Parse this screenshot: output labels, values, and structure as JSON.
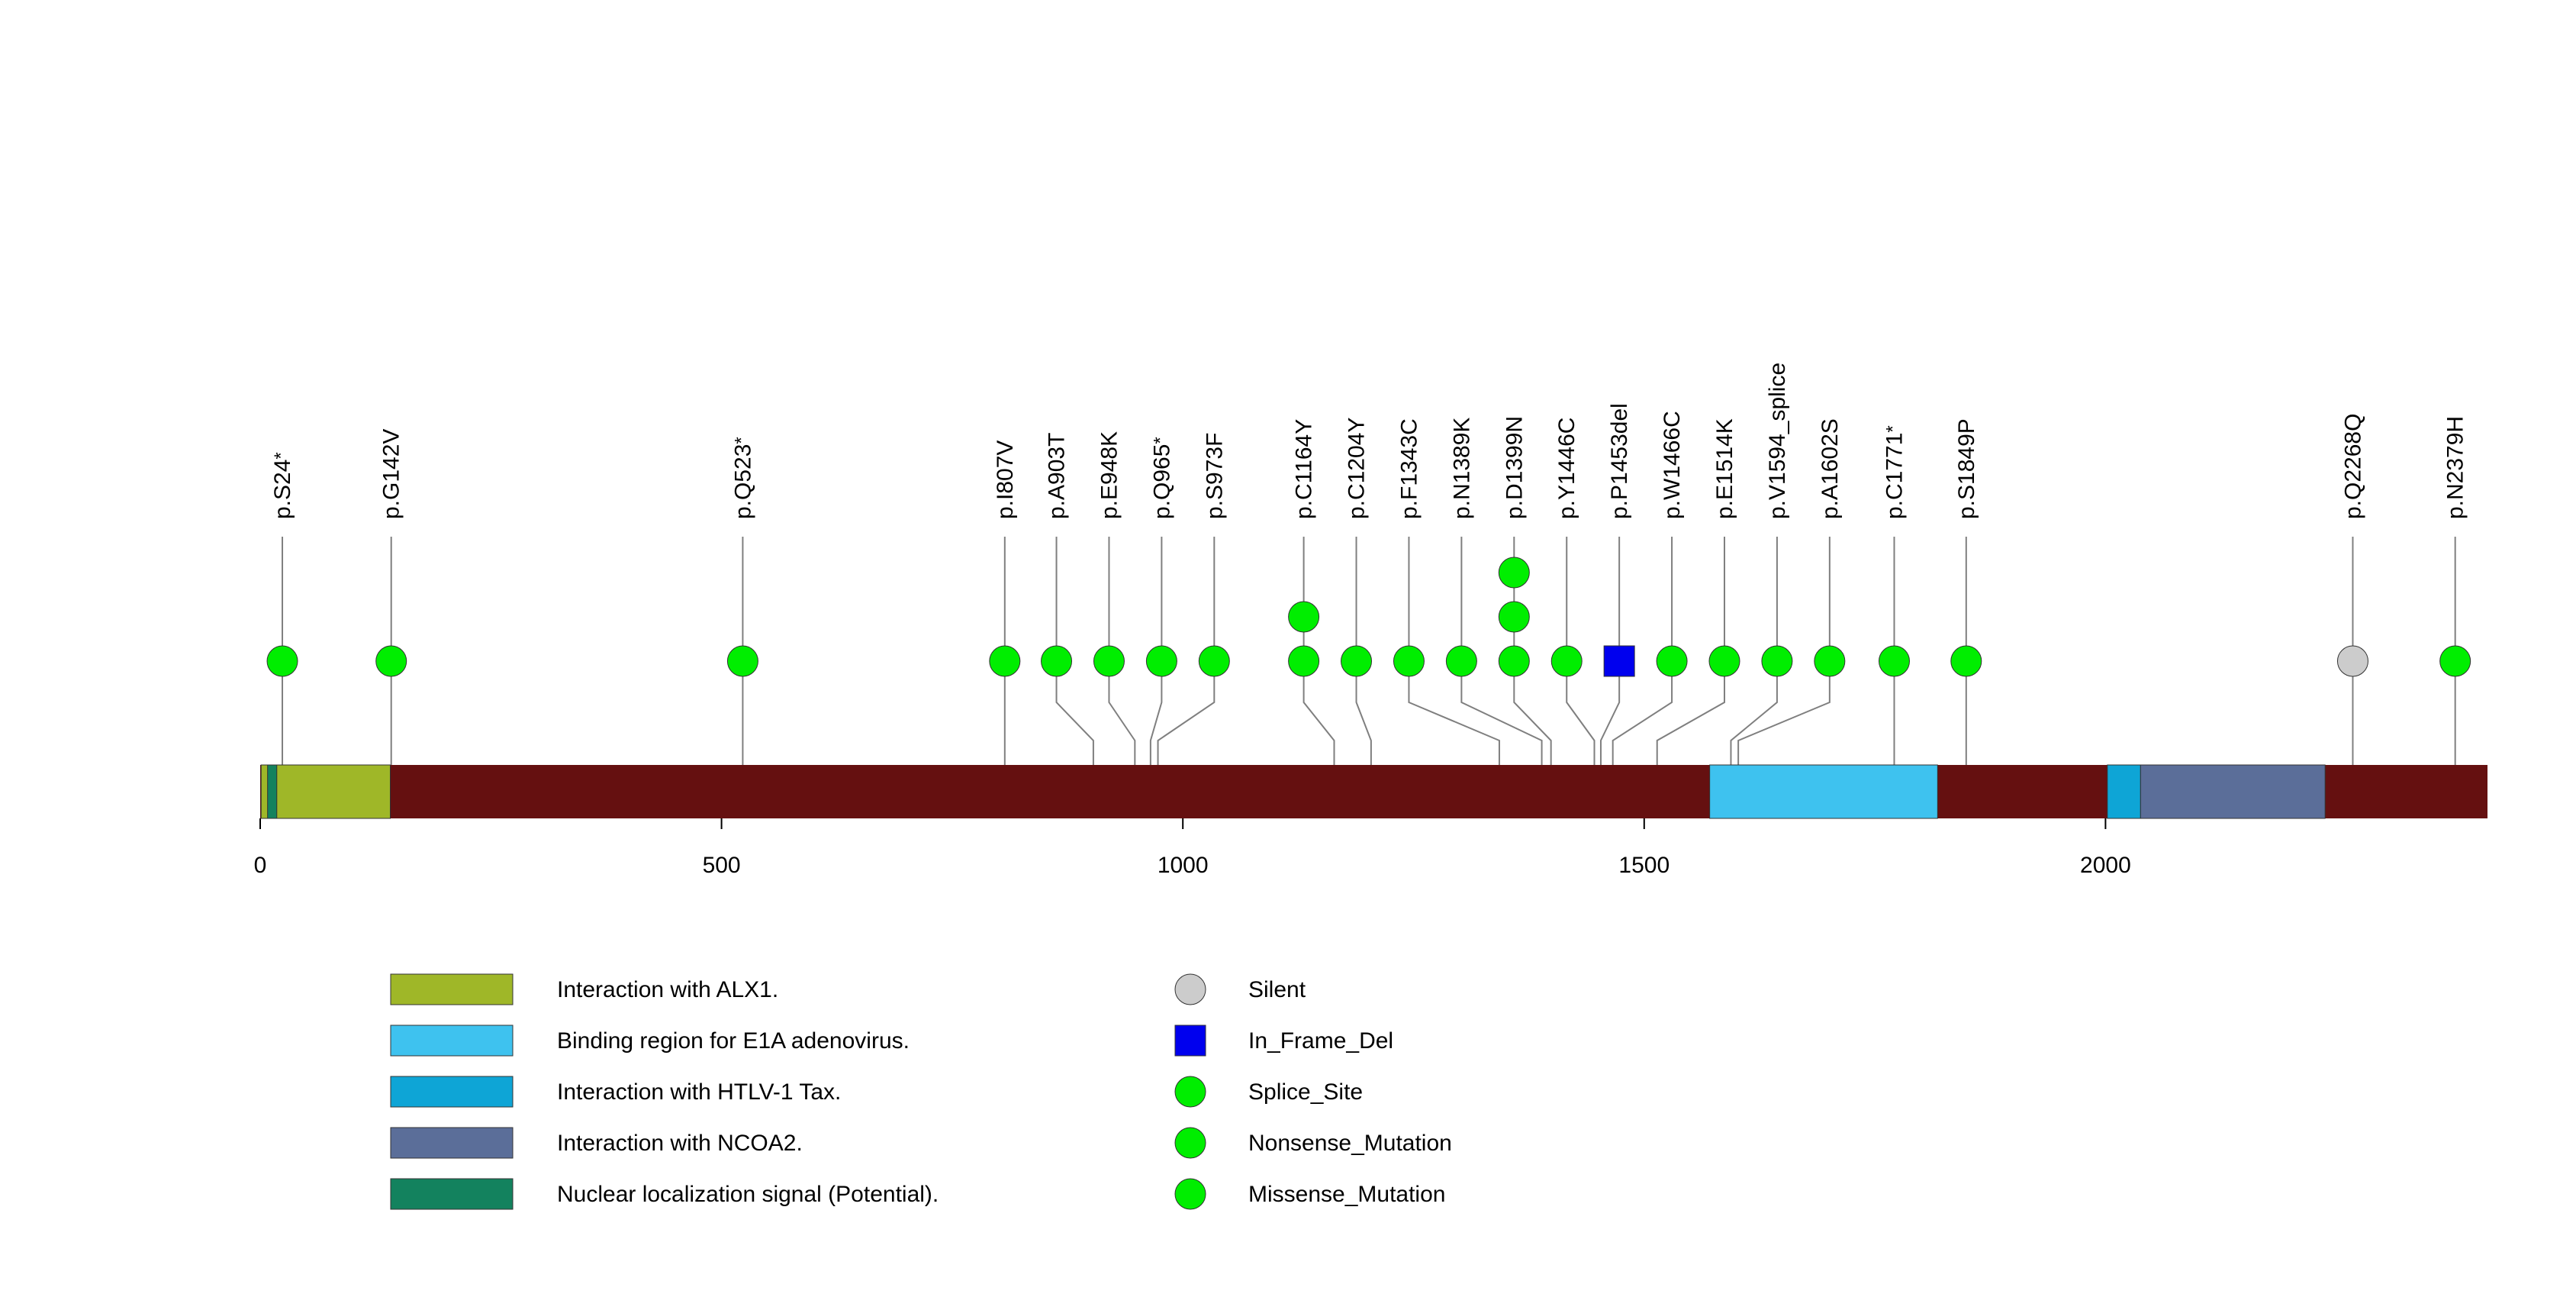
{
  "chart_data": {
    "type": "lollipop",
    "xlim": [
      0,
      2414
    ],
    "axis_ticks": [
      0,
      500,
      1000,
      1500,
      2000
    ],
    "protein": {
      "length": 2414,
      "backbone_color": "#651010"
    },
    "domains": [
      {
        "name": "Interaction with ALX1.",
        "start": 1,
        "end": 141,
        "color": "#9fb728"
      },
      {
        "name": "Nuclear localization signal (Potential).",
        "start": 8,
        "end": 18,
        "color": "#13825e"
      },
      {
        "name": "Binding region for E1A adenovirus.",
        "start": 1571,
        "end": 1818,
        "color": "#3ec2ef"
      },
      {
        "name": "Interaction with HTLV-1 Tax.",
        "start": 2002,
        "end": 2038,
        "color": "#0ea5d6"
      },
      {
        "name": "Interaction with NCOA2.",
        "start": 2038,
        "end": 2238,
        "color": "#5b6e99"
      }
    ],
    "mutations": [
      {
        "label": "p.S24",
        "star": true,
        "pos": 24,
        "label_x": 24,
        "count": 1,
        "type": "Nonsense_Mutation"
      },
      {
        "label": "p.G142V",
        "pos": 142,
        "label_x": 142,
        "count": 1,
        "type": "Missense_Mutation"
      },
      {
        "label": "p.Q523",
        "star": true,
        "pos": 523,
        "label_x": 523,
        "count": 1,
        "type": "Nonsense_Mutation"
      },
      {
        "label": "p.I807V",
        "pos": 807,
        "label_x": 807,
        "count": 1,
        "type": "Missense_Mutation"
      },
      {
        "label": "p.A903T",
        "pos": 903,
        "label_x": 863,
        "count": 1,
        "type": "Missense_Mutation"
      },
      {
        "label": "p.E948K",
        "pos": 948,
        "label_x": 920,
        "count": 1,
        "type": "Missense_Mutation"
      },
      {
        "label": "p.Q965",
        "star": true,
        "pos": 965,
        "label_x": 977,
        "count": 1,
        "type": "Nonsense_Mutation"
      },
      {
        "label": "p.S973F",
        "pos": 973,
        "label_x": 1034,
        "count": 1,
        "type": "Missense_Mutation"
      },
      {
        "label": "p.C1164Y",
        "pos": 1164,
        "label_x": 1131,
        "count": 2,
        "type": "Missense_Mutation"
      },
      {
        "label": "p.C1204Y",
        "pos": 1204,
        "label_x": 1188,
        "count": 1,
        "type": "Missense_Mutation"
      },
      {
        "label": "p.F1343C",
        "pos": 1343,
        "label_x": 1245,
        "count": 1,
        "type": "Missense_Mutation"
      },
      {
        "label": "p.N1389K",
        "pos": 1389,
        "label_x": 1302,
        "count": 1,
        "type": "Missense_Mutation"
      },
      {
        "label": "p.D1399N",
        "pos": 1399,
        "label_x": 1359,
        "count": 3,
        "type": "Missense_Mutation"
      },
      {
        "label": "p.Y1446C",
        "pos": 1446,
        "label_x": 1416,
        "count": 1,
        "type": "Missense_Mutation"
      },
      {
        "label": "p.P1453del",
        "pos": 1453,
        "label_x": 1473,
        "count": 1,
        "type": "In_Frame_Del"
      },
      {
        "label": "p.W1466C",
        "pos": 1466,
        "label_x": 1530,
        "count": 1,
        "type": "Missense_Mutation"
      },
      {
        "label": "p.E1514K",
        "pos": 1514,
        "label_x": 1587,
        "count": 1,
        "type": "Missense_Mutation"
      },
      {
        "label": "p.V1594_splice",
        "pos": 1594,
        "label_x": 1644,
        "count": 1,
        "type": "Splice_Site"
      },
      {
        "label": "p.A1602S",
        "pos": 1602,
        "label_x": 1701,
        "count": 1,
        "type": "Missense_Mutation"
      },
      {
        "label": "p.C1771",
        "star": true,
        "pos": 1771,
        "label_x": 1771,
        "count": 1,
        "type": "Nonsense_Mutation"
      },
      {
        "label": "p.S1849P",
        "pos": 1849,
        "label_x": 1849,
        "count": 1,
        "type": "Missense_Mutation"
      },
      {
        "label": "p.Q2268Q",
        "pos": 2268,
        "label_x": 2268,
        "count": 1,
        "type": "Silent"
      },
      {
        "label": "p.N2379H",
        "pos": 2379,
        "label_x": 2379,
        "count": 1,
        "type": "Missense_Mutation"
      }
    ],
    "legend_domains": [
      {
        "label": "Interaction with ALX1.",
        "color": "#9fb728"
      },
      {
        "label": "Binding region for E1A adenovirus.",
        "color": "#3ec2ef"
      },
      {
        "label": "Interaction with HTLV-1 Tax.",
        "color": "#0ea5d6"
      },
      {
        "label": "Interaction with NCOA2.",
        "color": "#5b6e99"
      },
      {
        "label": "Nuclear localization signal (Potential).",
        "color": "#13825e"
      }
    ],
    "legend_mutations": [
      {
        "label": "Silent",
        "shape": "circle",
        "color": "#cccccc"
      },
      {
        "label": "In_Frame_Del",
        "shape": "square",
        "color": "#0000ee"
      },
      {
        "label": "Splice_Site",
        "shape": "circle",
        "color": "#00ee00"
      },
      {
        "label": "Nonsense_Mutation",
        "shape": "circle",
        "color": "#00ee00"
      },
      {
        "label": "Missense_Mutation",
        "shape": "circle",
        "color": "#00ee00"
      }
    ],
    "type_colors": {
      "Missense_Mutation": "#00ee00",
      "Nonsense_Mutation": "#00ee00",
      "Splice_Site": "#00ee00",
      "Silent": "#cccccc",
      "In_Frame_Del": "#0000ee"
    }
  }
}
